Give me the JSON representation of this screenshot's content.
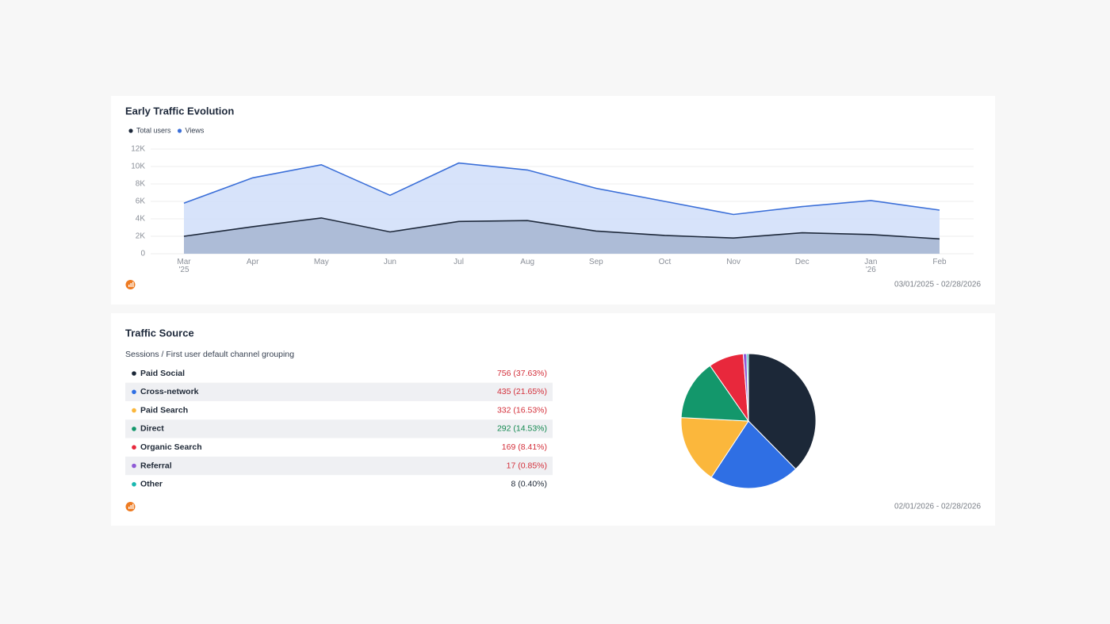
{
  "chart_data": [
    {
      "type": "area",
      "title": "Early Traffic Evolution",
      "categories": [
        "Mar\n'25",
        "Apr",
        "May",
        "Jun",
        "Jul",
        "Aug",
        "Sep",
        "Oct",
        "Nov",
        "Dec",
        "Jan\n'26",
        "Feb"
      ],
      "series": [
        {
          "name": "Total users",
          "color": "#1e293b",
          "fill": "#a9b7d3",
          "values": [
            2000,
            3100,
            4100,
            2500,
            3700,
            3800,
            2600,
            2100,
            1800,
            2400,
            2200,
            1700
          ]
        },
        {
          "name": "Views",
          "color": "#3b6fd8",
          "fill": "#d3e0fa",
          "values": [
            5800,
            8700,
            10200,
            6700,
            10400,
            9600,
            7500,
            6000,
            4500,
            5400,
            6100,
            5000
          ]
        }
      ],
      "ylim": [
        0,
        12000
      ],
      "yticks": [
        0,
        {
          "value": 2000,
          "label": "2K"
        },
        {
          "value": 4000,
          "label": "4K"
        },
        {
          "value": 6000,
          "label": "6K"
        },
        {
          "value": 8000,
          "label": "8K"
        },
        {
          "value": 10000,
          "label": "10K"
        },
        {
          "value": 12000,
          "label": "12K"
        }
      ],
      "grid": true,
      "legend": "top-left",
      "date_range": "03/01/2025 - 02/28/2026"
    },
    {
      "type": "pie",
      "title": "Traffic Source",
      "subtitle": "Sessions / First user default channel grouping",
      "categories": [
        "Paid Social",
        "Cross-network",
        "Paid Search",
        "Direct",
        "Organic Search",
        "Referral",
        "Other"
      ],
      "values": [
        756,
        435,
        332,
        292,
        169,
        17,
        8
      ],
      "value_labels": [
        "756 (37.63%)",
        "435 (21.65%)",
        "332 (16.53%)",
        "292 (14.53%)",
        "169 (8.41%)",
        "17 (0.85%)",
        "8 (0.40%)"
      ],
      "colors": [
        "#1c2838",
        "#2f6fe4",
        "#fbb73c",
        "#13976b",
        "#e8283c",
        "#8e5ad6",
        "#19b8b0"
      ],
      "value_label_colors": [
        "#d32f3a",
        "#d32f3a",
        "#d32f3a",
        "#12884f",
        "#d32f3a",
        "#d32f3a",
        "#1f2937"
      ],
      "date_range": "02/01/2026 - 02/28/2026"
    }
  ]
}
